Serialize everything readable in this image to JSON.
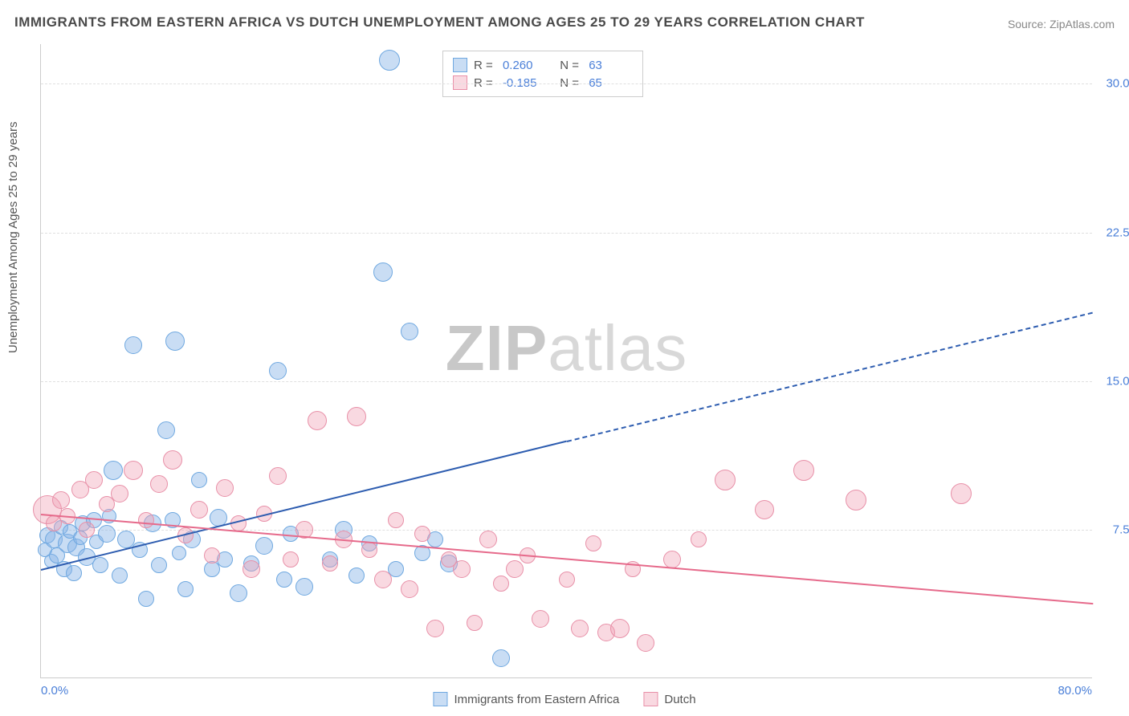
{
  "title": "IMMIGRANTS FROM EASTERN AFRICA VS DUTCH UNEMPLOYMENT AMONG AGES 25 TO 29 YEARS CORRELATION CHART",
  "source": "Source: ZipAtlas.com",
  "ylabel": "Unemployment Among Ages 25 to 29 years",
  "watermark_a": "ZIP",
  "watermark_b": "atlas",
  "chart": {
    "type": "scatter",
    "xlim": [
      0,
      80
    ],
    "ylim": [
      0,
      32
    ],
    "xtick_labels": {
      "min": "0.0%",
      "max": "80.0%"
    },
    "yticks": [
      7.5,
      15.0,
      22.5,
      30.0
    ],
    "ytick_labels": [
      "7.5%",
      "15.0%",
      "22.5%",
      "30.0%"
    ],
    "background_color": "#ffffff",
    "grid_color": "#e0e0e0",
    "axis_color": "#cccccc",
    "tick_text_color": "#4a7fd8",
    "series": [
      {
        "name": "Immigrants from Eastern Africa",
        "color_fill": "rgba(135,180,230,0.45)",
        "color_stroke": "#6fa8e0",
        "trend_color": "#2e5db0",
        "trend": {
          "x1": 0,
          "y1": 5.5,
          "x2_solid": 40,
          "y2_solid": 12.0,
          "x2": 80,
          "y2": 18.5
        },
        "R": "0.260",
        "N": "63",
        "points": [
          [
            0.3,
            6.5,
            9
          ],
          [
            0.5,
            7.2,
            10
          ],
          [
            0.8,
            5.9,
            9
          ],
          [
            1.0,
            7.0,
            11
          ],
          [
            1.2,
            6.2,
            10
          ],
          [
            1.5,
            7.6,
            9
          ],
          [
            1.8,
            5.5,
            10
          ],
          [
            2.0,
            6.8,
            12
          ],
          [
            2.2,
            7.4,
            9
          ],
          [
            2.5,
            5.3,
            10
          ],
          [
            2.7,
            6.6,
            11
          ],
          [
            3.0,
            7.1,
            9
          ],
          [
            3.2,
            7.8,
            10
          ],
          [
            3.5,
            6.1,
            11
          ],
          [
            4.0,
            8.0,
            10
          ],
          [
            4.2,
            6.9,
            9
          ],
          [
            4.5,
            5.7,
            10
          ],
          [
            5.0,
            7.3,
            11
          ],
          [
            5.2,
            8.2,
            9
          ],
          [
            5.5,
            10.5,
            12
          ],
          [
            6.0,
            5.2,
            10
          ],
          [
            6.5,
            7.0,
            11
          ],
          [
            7.0,
            16.8,
            11
          ],
          [
            7.5,
            6.5,
            10
          ],
          [
            8.0,
            4.0,
            10
          ],
          [
            8.5,
            7.8,
            11
          ],
          [
            9.0,
            5.7,
            10
          ],
          [
            9.5,
            12.5,
            11
          ],
          [
            10.0,
            8.0,
            10
          ],
          [
            10.2,
            17.0,
            12
          ],
          [
            10.5,
            6.3,
            9
          ],
          [
            11.0,
            4.5,
            10
          ],
          [
            11.5,
            7.0,
            11
          ],
          [
            12.0,
            10.0,
            10
          ],
          [
            13.0,
            5.5,
            10
          ],
          [
            13.5,
            8.1,
            11
          ],
          [
            14.0,
            6.0,
            10
          ],
          [
            15.0,
            4.3,
            11
          ],
          [
            16.0,
            5.8,
            10
          ],
          [
            17.0,
            6.7,
            11
          ],
          [
            18.0,
            15.5,
            11
          ],
          [
            18.5,
            5.0,
            10
          ],
          [
            19.0,
            7.3,
            10
          ],
          [
            20.0,
            4.6,
            11
          ],
          [
            22.0,
            6.0,
            10
          ],
          [
            23.0,
            7.5,
            11
          ],
          [
            24.0,
            5.2,
            10
          ],
          [
            25.0,
            6.8,
            10
          ],
          [
            26.0,
            20.5,
            12
          ],
          [
            27.0,
            5.5,
            10
          ],
          [
            28.0,
            17.5,
            11
          ],
          [
            29.0,
            6.3,
            10
          ],
          [
            30.0,
            7.0,
            10
          ],
          [
            31.0,
            5.8,
            11
          ],
          [
            35.0,
            1.0,
            11
          ],
          [
            26.5,
            31.2,
            13
          ]
        ]
      },
      {
        "name": "Dutch",
        "color_fill": "rgba(240,160,180,0.40)",
        "color_stroke": "#e890a8",
        "trend_color": "#e66a8b",
        "trend": {
          "x1": 0,
          "y1": 8.3,
          "x2_solid": 80,
          "y2_solid": 3.8,
          "x2": 80,
          "y2": 3.8
        },
        "R": "-0.185",
        "N": "65",
        "points": [
          [
            0.5,
            8.5,
            18
          ],
          [
            1.0,
            7.8,
            10
          ],
          [
            1.5,
            9.0,
            11
          ],
          [
            2.0,
            8.2,
            10
          ],
          [
            3.0,
            9.5,
            11
          ],
          [
            3.5,
            7.5,
            10
          ],
          [
            4.0,
            10.0,
            11
          ],
          [
            5.0,
            8.8,
            10
          ],
          [
            6.0,
            9.3,
            11
          ],
          [
            7.0,
            10.5,
            12
          ],
          [
            8.0,
            8.0,
            10
          ],
          [
            9.0,
            9.8,
            11
          ],
          [
            10.0,
            11.0,
            12
          ],
          [
            11.0,
            7.2,
            10
          ],
          [
            12.0,
            8.5,
            11
          ],
          [
            13.0,
            6.2,
            10
          ],
          [
            14.0,
            9.6,
            11
          ],
          [
            15.0,
            7.8,
            10
          ],
          [
            16.0,
            5.5,
            11
          ],
          [
            17.0,
            8.3,
            10
          ],
          [
            18.0,
            10.2,
            11
          ],
          [
            19.0,
            6.0,
            10
          ],
          [
            20.0,
            7.5,
            11
          ],
          [
            21.0,
            13.0,
            12
          ],
          [
            22.0,
            5.8,
            10
          ],
          [
            23.0,
            7.0,
            11
          ],
          [
            24.0,
            13.2,
            12
          ],
          [
            25.0,
            6.5,
            10
          ],
          [
            26.0,
            5.0,
            11
          ],
          [
            27.0,
            8.0,
            10
          ],
          [
            28.0,
            4.5,
            11
          ],
          [
            29.0,
            7.3,
            10
          ],
          [
            30.0,
            2.5,
            11
          ],
          [
            31.0,
            6.0,
            10
          ],
          [
            32.0,
            5.5,
            11
          ],
          [
            33.0,
            2.8,
            10
          ],
          [
            34.0,
            7.0,
            11
          ],
          [
            35.0,
            4.8,
            10
          ],
          [
            36.0,
            5.5,
            11
          ],
          [
            37.0,
            6.2,
            10
          ],
          [
            38.0,
            3.0,
            11
          ],
          [
            40.0,
            5.0,
            10
          ],
          [
            41.0,
            2.5,
            11
          ],
          [
            42.0,
            6.8,
            10
          ],
          [
            43.0,
            2.3,
            11
          ],
          [
            44.0,
            2.5,
            12
          ],
          [
            45.0,
            5.5,
            10
          ],
          [
            46.0,
            1.8,
            11
          ],
          [
            48.0,
            6.0,
            11
          ],
          [
            50.0,
            7.0,
            10
          ],
          [
            52.0,
            10.0,
            13
          ],
          [
            55.0,
            8.5,
            12
          ],
          [
            58.0,
            10.5,
            13
          ],
          [
            62.0,
            9.0,
            13
          ],
          [
            70.0,
            9.3,
            13
          ]
        ]
      }
    ],
    "bottom_legend": [
      {
        "label": "Immigrants from Eastern Africa",
        "swatch_fill": "rgba(135,180,230,0.45)",
        "swatch_stroke": "#6fa8e0"
      },
      {
        "label": "Dutch",
        "swatch_fill": "rgba(240,160,180,0.40)",
        "swatch_stroke": "#e890a8"
      }
    ]
  }
}
